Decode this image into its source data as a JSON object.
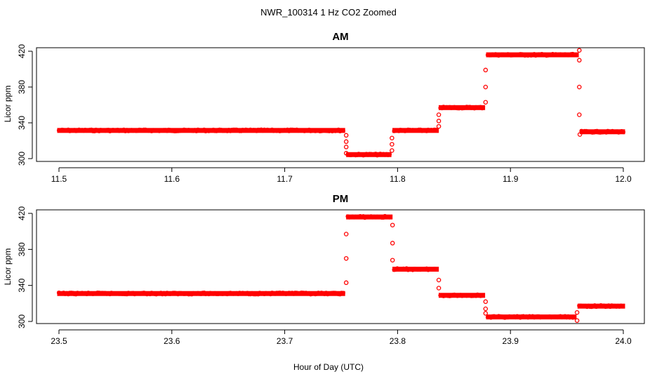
{
  "chart_data": {
    "title": "NWR_100314  1 Hz CO2 Zoomed",
    "xlabel": "Hour of Day (UTC)",
    "colors": {
      "points": "#ff0000",
      "axes": "#000000"
    },
    "panels": [
      {
        "type": "scatter",
        "title": "AM",
        "ylabel": "Licor ppm",
        "xlim": [
          11.5,
          12.0
        ],
        "ylim": [
          300,
          420
        ],
        "xticks": [
          11.5,
          11.6,
          11.7,
          11.8,
          11.9,
          12.0
        ],
        "xtick_labels": [
          "11.5",
          "11.6",
          "11.7",
          "11.8",
          "11.9",
          "12.0"
        ],
        "yticks": [
          300,
          340,
          380,
          420
        ],
        "ytick_labels": [
          "300",
          "340",
          "380",
          "420"
        ],
        "segments": [
          {
            "x_start": 11.5,
            "x_end": 11.752,
            "y": 331.5
          },
          {
            "x_start": 11.756,
            "x_end": 11.793,
            "y": 304.5
          },
          {
            "x_start": 11.797,
            "x_end": 11.835,
            "y": 331.5
          },
          {
            "x_start": 11.838,
            "x_end": 11.876,
            "y": 357
          },
          {
            "x_start": 11.88,
            "x_end": 11.959,
            "y": 416
          },
          {
            "x_start": 11.963,
            "x_end": 12.0,
            "y": 330
          }
        ],
        "transitions": [
          {
            "x": 11.7545,
            "y": 326
          },
          {
            "x": 11.7545,
            "y": 319
          },
          {
            "x": 11.7545,
            "y": 313
          },
          {
            "x": 11.7545,
            "y": 306
          },
          {
            "x": 11.795,
            "y": 309
          },
          {
            "x": 11.795,
            "y": 316
          },
          {
            "x": 11.795,
            "y": 323
          },
          {
            "x": 11.8365,
            "y": 336
          },
          {
            "x": 11.8365,
            "y": 342
          },
          {
            "x": 11.8365,
            "y": 349
          },
          {
            "x": 11.878,
            "y": 363
          },
          {
            "x": 11.878,
            "y": 380
          },
          {
            "x": 11.878,
            "y": 399
          },
          {
            "x": 11.961,
            "y": 421
          },
          {
            "x": 11.961,
            "y": 410
          },
          {
            "x": 11.961,
            "y": 380
          },
          {
            "x": 11.961,
            "y": 349
          },
          {
            "x": 11.9615,
            "y": 327
          }
        ]
      },
      {
        "type": "scatter",
        "title": "PM",
        "ylabel": "Licor ppm",
        "xlim": [
          23.5,
          24.0
        ],
        "ylim": [
          300,
          420
        ],
        "xticks": [
          23.5,
          23.6,
          23.7,
          23.8,
          23.9,
          24.0
        ],
        "xtick_labels": [
          "23.5",
          "23.6",
          "23.7",
          "23.8",
          "23.9",
          "24.0"
        ],
        "yticks": [
          300,
          340,
          380,
          420
        ],
        "ytick_labels": [
          "300",
          "340",
          "380",
          "420"
        ],
        "segments": [
          {
            "x_start": 23.5,
            "x_end": 23.752,
            "y": 331
          },
          {
            "x_start": 23.756,
            "x_end": 23.794,
            "y": 416
          },
          {
            "x_start": 23.797,
            "x_end": 23.835,
            "y": 358
          },
          {
            "x_start": 23.838,
            "x_end": 23.876,
            "y": 329
          },
          {
            "x_start": 23.88,
            "x_end": 23.957,
            "y": 305
          },
          {
            "x_start": 23.961,
            "x_end": 24.0,
            "y": 317
          }
        ],
        "transitions": [
          {
            "x": 23.7545,
            "y": 343
          },
          {
            "x": 23.7545,
            "y": 370
          },
          {
            "x": 23.7545,
            "y": 397
          },
          {
            "x": 23.7955,
            "y": 407
          },
          {
            "x": 23.7955,
            "y": 387
          },
          {
            "x": 23.7955,
            "y": 368
          },
          {
            "x": 23.8365,
            "y": 346
          },
          {
            "x": 23.8365,
            "y": 337
          },
          {
            "x": 23.878,
            "y": 322
          },
          {
            "x": 23.878,
            "y": 314
          },
          {
            "x": 23.878,
            "y": 309
          },
          {
            "x": 23.959,
            "y": 301
          },
          {
            "x": 23.959,
            "y": 310
          }
        ]
      }
    ]
  }
}
